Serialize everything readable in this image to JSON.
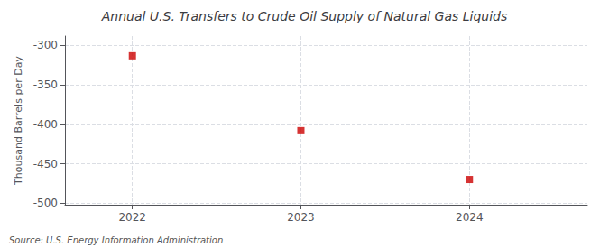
{
  "chart_data": {
    "type": "scatter",
    "title": "Annual U.S. Transfers to Crude Oil Supply of Natural Gas Liquids",
    "ylabel": "Thousand Barrels per Day",
    "annotations": [
      "Source: U.S. Energy Information Administration"
    ],
    "x": [
      2022,
      2023,
      2024
    ],
    "values": [
      -313,
      -408,
      -470
    ],
    "color": "#cc0000",
    "marker": "square",
    "xlim": [
      2021.6,
      2024.7
    ],
    "xticks": [
      2022,
      2023,
      2024
    ],
    "ylim": [
      -502,
      -288
    ],
    "yticks": [
      -300,
      -350,
      -400,
      -450,
      -500
    ],
    "grid": true
  }
}
